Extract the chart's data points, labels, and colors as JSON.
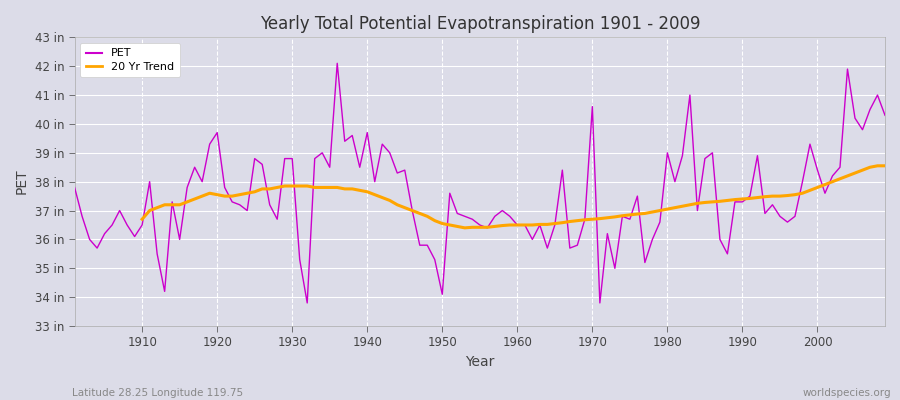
{
  "title": "Yearly Total Potential Evapotranspiration 1901 - 2009",
  "xlabel": "Year",
  "ylabel": "PET",
  "footnote_left": "Latitude 28.25 Longitude 119.75",
  "footnote_right": "worldspecies.org",
  "ylim_min": 33,
  "ylim_max": 43,
  "ytick_labels": [
    "33 in",
    "34 in",
    "35 in",
    "36 in",
    "37 in",
    "38 in",
    "39 in",
    "40 in",
    "41 in",
    "42 in",
    "43 in"
  ],
  "ytick_values": [
    33,
    34,
    35,
    36,
    37,
    38,
    39,
    40,
    41,
    42,
    43
  ],
  "pet_color": "#CC00CC",
  "trend_color": "#FFA500",
  "bg_color": "#DCDCE8",
  "plot_bg_color": "#DCDCE8",
  "years": [
    1901,
    1902,
    1903,
    1904,
    1905,
    1906,
    1907,
    1908,
    1909,
    1910,
    1911,
    1912,
    1913,
    1914,
    1915,
    1916,
    1917,
    1918,
    1919,
    1920,
    1921,
    1922,
    1923,
    1924,
    1925,
    1926,
    1927,
    1928,
    1929,
    1930,
    1931,
    1932,
    1933,
    1934,
    1935,
    1936,
    1937,
    1938,
    1939,
    1940,
    1941,
    1942,
    1943,
    1944,
    1945,
    1946,
    1947,
    1948,
    1949,
    1950,
    1951,
    1952,
    1953,
    1954,
    1955,
    1956,
    1957,
    1958,
    1959,
    1960,
    1961,
    1962,
    1963,
    1964,
    1965,
    1966,
    1967,
    1968,
    1969,
    1970,
    1971,
    1972,
    1973,
    1974,
    1975,
    1976,
    1977,
    1978,
    1979,
    1980,
    1981,
    1982,
    1983,
    1984,
    1985,
    1986,
    1987,
    1988,
    1989,
    1990,
    1991,
    1992,
    1993,
    1994,
    1995,
    1996,
    1997,
    1998,
    1999,
    2000,
    2001,
    2002,
    2003,
    2004,
    2005,
    2006,
    2007,
    2008,
    2009
  ],
  "pet_values": [
    37.8,
    36.8,
    36.0,
    35.7,
    36.2,
    36.5,
    37.0,
    36.5,
    36.1,
    36.5,
    38.0,
    35.5,
    34.2,
    37.3,
    36.0,
    37.8,
    38.5,
    38.0,
    39.3,
    39.7,
    37.8,
    37.3,
    37.2,
    37.0,
    38.8,
    38.6,
    37.2,
    36.7,
    38.8,
    38.8,
    35.3,
    33.8,
    38.8,
    39.0,
    38.5,
    42.1,
    39.4,
    39.6,
    38.5,
    39.7,
    38.0,
    39.3,
    39.0,
    38.3,
    38.4,
    37.0,
    35.8,
    35.8,
    35.3,
    34.1,
    37.6,
    36.9,
    36.8,
    36.7,
    36.5,
    36.4,
    36.8,
    37.0,
    36.8,
    36.5,
    36.5,
    36.0,
    36.5,
    35.7,
    36.5,
    38.4,
    35.7,
    35.8,
    36.7,
    40.6,
    33.8,
    36.2,
    35.0,
    36.8,
    36.7,
    37.5,
    35.2,
    36.0,
    36.6,
    39.0,
    38.0,
    38.9,
    41.0,
    37.0,
    38.8,
    39.0,
    36.0,
    35.5,
    37.3,
    37.3,
    37.5,
    38.9,
    36.9,
    37.2,
    36.8,
    36.6,
    36.8,
    38.0,
    39.3,
    38.4,
    37.6,
    38.2,
    38.5,
    41.9,
    40.2,
    39.8,
    40.5,
    41.0,
    40.3
  ],
  "trend_values": [
    null,
    null,
    null,
    null,
    null,
    null,
    null,
    null,
    null,
    36.7,
    37.0,
    37.1,
    37.2,
    37.2,
    37.2,
    37.3,
    37.4,
    37.5,
    37.6,
    37.55,
    37.5,
    37.5,
    37.55,
    37.6,
    37.65,
    37.75,
    37.75,
    37.8,
    37.85,
    37.85,
    37.85,
    37.85,
    37.8,
    37.8,
    37.8,
    37.8,
    37.75,
    37.75,
    37.7,
    37.65,
    37.55,
    37.45,
    37.35,
    37.2,
    37.1,
    37.0,
    36.9,
    36.8,
    36.65,
    36.55,
    36.5,
    36.45,
    36.4,
    36.42,
    36.42,
    36.42,
    36.45,
    36.48,
    36.5,
    36.5,
    36.5,
    36.5,
    36.52,
    36.52,
    36.55,
    36.58,
    36.62,
    36.65,
    36.68,
    36.7,
    36.72,
    36.75,
    36.78,
    36.82,
    36.85,
    36.88,
    36.9,
    36.95,
    37.0,
    37.05,
    37.1,
    37.15,
    37.2,
    37.25,
    37.28,
    37.3,
    37.32,
    37.35,
    37.38,
    37.4,
    37.42,
    37.45,
    37.48,
    37.5,
    37.5,
    37.52,
    37.55,
    37.6,
    37.7,
    37.8,
    37.9,
    38.0,
    38.1,
    38.2,
    38.3,
    38.4,
    38.5,
    38.55,
    38.55
  ]
}
